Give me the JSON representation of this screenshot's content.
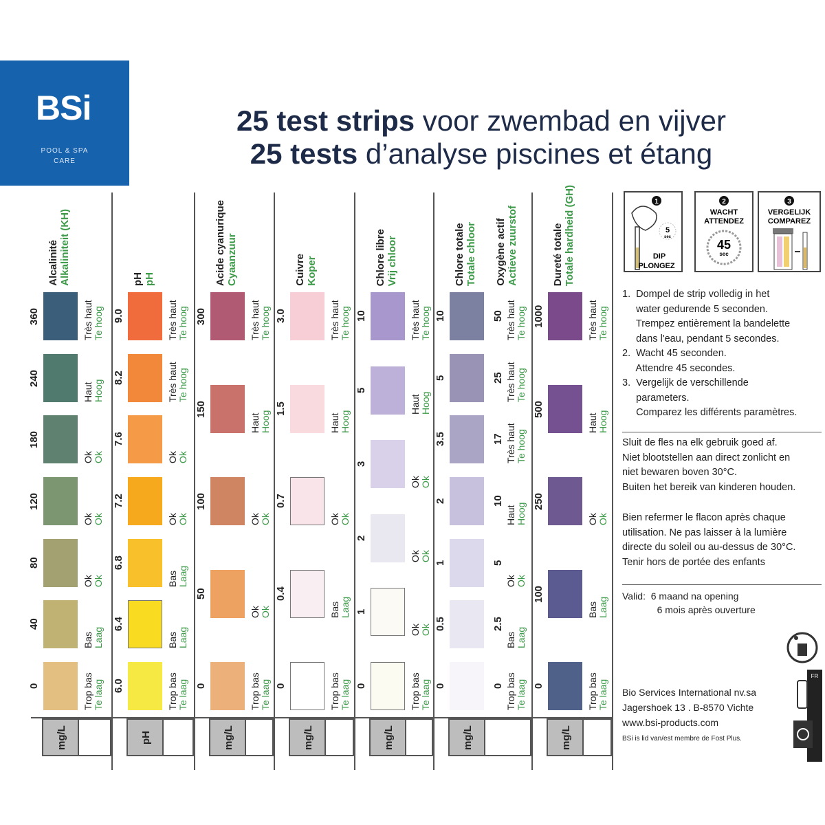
{
  "brand": {
    "name": "BSi",
    "tagline_1": "POOL & SPA",
    "tagline_2": "CARE",
    "color": "#1662ad"
  },
  "title": {
    "line1_bold": "25 test strips",
    "line1_rest": " voor zwembad en vijver",
    "line2_bold": "25 tests",
    "line2_rest": " d’analyse piscines et étang"
  },
  "columns": [
    {
      "name_nl": "Alkaliniteit (KH)",
      "name_fr": "Alcalinité",
      "unit": "mg/L",
      "left": 45,
      "pads": [
        {
          "value": "360",
          "color": "#3b5f7b",
          "nl": "Te hoog",
          "fr": "Très haut"
        },
        {
          "value": "240",
          "color": "#4f7a6d",
          "nl": "Hoog",
          "fr": "Haut"
        },
        {
          "value": "180",
          "color": "#5f8170",
          "nl": "Ok",
          "fr": "Ok"
        },
        {
          "value": "120",
          "color": "#7b9670",
          "nl": "Ok",
          "fr": "Ok"
        },
        {
          "value": "80",
          "color": "#a3a071",
          "nl": "Ok",
          "fr": "Ok"
        },
        {
          "value": "40",
          "color": "#c0b273",
          "nl": "Laag",
          "fr": "Bas"
        },
        {
          "value": "0",
          "color": "#e3bf82",
          "nl": "Te laag",
          "fr": "Trop bas"
        }
      ]
    },
    {
      "name_nl": "pH",
      "name_fr": "pH",
      "unit": "pH",
      "left": 162,
      "pads": [
        {
          "value": "9.0",
          "color": "#f06c3c",
          "nl": "Te hoog",
          "fr": "Très haut"
        },
        {
          "value": "8.2",
          "color": "#f2883a",
          "nl": "Te hoog",
          "fr": "Très haut"
        },
        {
          "value": "7.6",
          "color": "#f59b48",
          "nl": "Ok",
          "fr": "Ok"
        },
        {
          "value": "7.2",
          "color": "#f6a91d",
          "nl": "Ok",
          "fr": "Ok"
        },
        {
          "value": "6.8",
          "color": "#f8c12b",
          "nl": "Laag",
          "fr": "Bas"
        },
        {
          "value": "6.4",
          "color": "#f9db22",
          "nl": "Laag",
          "fr": "Bas"
        },
        {
          "value": "6.0",
          "color": "#f6e943",
          "nl": "Te laag",
          "fr": "Trop bas"
        }
      ]
    },
    {
      "name_nl": "Cyaanzuur",
      "name_fr": "Acide cyanurique",
      "unit": "mg/L",
      "left": 282,
      "pads": [
        {
          "value": "300",
          "color": "#b05a73",
          "nl": "Te hoog",
          "fr": "Très haut"
        },
        {
          "value": "150",
          "color": "#c9716b",
          "nl": "Hoog",
          "fr": "Haut"
        },
        {
          "value": "100",
          "color": "#cf8561",
          "nl": "Ok",
          "fr": "Ok"
        },
        {
          "value": "50",
          "color": "#eea262",
          "nl": "Ok",
          "fr": "Ok"
        },
        {
          "value": "0",
          "color": "#ecb17b",
          "nl": "Te laag",
          "fr": "Trop bas"
        }
      ]
    },
    {
      "name_nl": "Koper",
      "name_fr": "Cuivre",
      "unit": "mg/L",
      "left": 398,
      "pads": [
        {
          "value": "3.0",
          "color": "#f7ced6",
          "nl": "Te hoog",
          "fr": "Très haut"
        },
        {
          "value": "1.5",
          "color": "#f8dadf",
          "nl": "Hoog",
          "fr": "Haut"
        },
        {
          "value": "0.7",
          "color": "#f9e4e9",
          "nl": "Ok",
          "fr": "Ok"
        },
        {
          "value": "0.4",
          "color": "#f9eef1",
          "nl": "Laag",
          "fr": "Bas"
        },
        {
          "value": "0",
          "color": "#ffffff",
          "nl": "Te laag",
          "fr": "Trop bas"
        }
      ]
    },
    {
      "name_nl": "Vrij chloor",
      "name_fr": "Chlore libre",
      "unit": "mg/L",
      "left": 515,
      "pads": [
        {
          "value": "10",
          "color": "#a897cc",
          "nl": "Te hoog",
          "fr": "Très haut"
        },
        {
          "value": "5",
          "color": "#bdb0d9",
          "nl": "Hoog",
          "fr": "Haut"
        },
        {
          "value": "3",
          "color": "#d9d1e9",
          "nl": "Ok",
          "fr": "Ok"
        },
        {
          "value": "2",
          "color": "#e9e7ef",
          "nl": "Ok",
          "fr": "Ok"
        },
        {
          "value": "1",
          "color": "#fbfaf5",
          "nl": "Ok",
          "fr": "Ok"
        },
        {
          "value": "0",
          "color": "#fcfbf2",
          "nl": "Te laag",
          "fr": "Trop bas"
        }
      ]
    },
    {
      "name_nl": "Totale chloor",
      "name_fr": "Chlore totale",
      "name2_nl": "Actieve zuurstof",
      "name2_fr": "Oxygène actif",
      "unit": "mg/L",
      "left": 630,
      "pads": [
        {
          "value": "10",
          "value2": "50",
          "color": "#7c80a1",
          "nl": "Te hoog",
          "fr": "Très haut"
        },
        {
          "value": "5",
          "value2": "25",
          "color": "#9994b5",
          "nl": "Te hoog",
          "fr": "Très haut"
        },
        {
          "value": "3.5",
          "value2": "17",
          "color": "#aba5c5",
          "nl": "Te hoog",
          "fr": "Très haut"
        },
        {
          "value": "2",
          "value2": "10",
          "color": "#c7c1dd",
          "nl": "Hoog",
          "fr": "Haut"
        },
        {
          "value": "1",
          "value2": "5",
          "color": "#ddd9ec",
          "nl": "Ok",
          "fr": "Ok"
        },
        {
          "value": "0.5",
          "value2": "2.5",
          "color": "#e9e7f1",
          "nl": "Laag",
          "fr": "Bas"
        },
        {
          "value": "0",
          "value2": "0",
          "color": "#f7f5f9",
          "nl": "Te laag",
          "fr": "Trop bas"
        }
      ]
    },
    {
      "name_nl": "Totale hardheid (GH)",
      "name_fr": "Dureté totale",
      "unit": "mg/L",
      "left": 773,
      "pads": [
        {
          "value": "1000",
          "color": "#7a4a8a",
          "nl": "Te hoog",
          "fr": "Très haut"
        },
        {
          "value": "500",
          "color": "#765191",
          "nl": "Hoog",
          "fr": "Haut"
        },
        {
          "value": "250",
          "color": "#6e5990",
          "nl": "Ok",
          "fr": "Ok"
        },
        {
          "value": "100",
          "color": "#5b5b91",
          "nl": "Laag",
          "fr": "Bas"
        },
        {
          "value": "0",
          "color": "#4f6189",
          "nl": "Te laag",
          "fr": "Trop bas"
        }
      ]
    }
  ],
  "steps": [
    {
      "num": "1",
      "label1": "DIP",
      "label2": "PLONGEZ",
      "time": "5",
      "unit": "sec"
    },
    {
      "num": "2",
      "label1": "WACHT",
      "label2": "ATTENDEZ",
      "time": "45",
      "unit": "sec"
    },
    {
      "num": "3",
      "label1": "VERGELIJK",
      "label2": "COMPAREZ"
    }
  ],
  "instructions": [
    "1.  Dompel de strip volledig in het",
    "     water gedurende 5 seconden.",
    "     Trempez entièrement la bandelette",
    "     dans l'eau, pendant 5 secondes.",
    "2.  Wacht 45 seconden.",
    "     Attendre 45 secondes.",
    "3.  Vergelijk de verschillende",
    "     parameters.",
    "     Comparez les différents paramètres."
  ],
  "warnings_nl": [
    "Sluit de fles na elk gebruik goed af.",
    "Niet blootstellen aan direct zonlicht en",
    "niet bewaren boven 30°C.",
    "Buiten het bereik van kinderen houden."
  ],
  "warnings_fr": [
    "Bien refermer le flacon après chaque",
    "utilisation. Ne pas laisser à la lumière",
    "directe du soleil ou au-dessus de 30°C.",
    "Tenir hors de portée des enfants"
  ],
  "validity": [
    "Valid:  6 maand na opening",
    "             6 mois après ouverture"
  ],
  "company": [
    "Bio Services International nv.sa",
    "Jagershoek 13 . B-8570 Vichte",
    "www.bsi-products.com"
  ],
  "fostplus": "BSi is lid van/est membre de Fost Plus.",
  "fr_badge": "FR"
}
